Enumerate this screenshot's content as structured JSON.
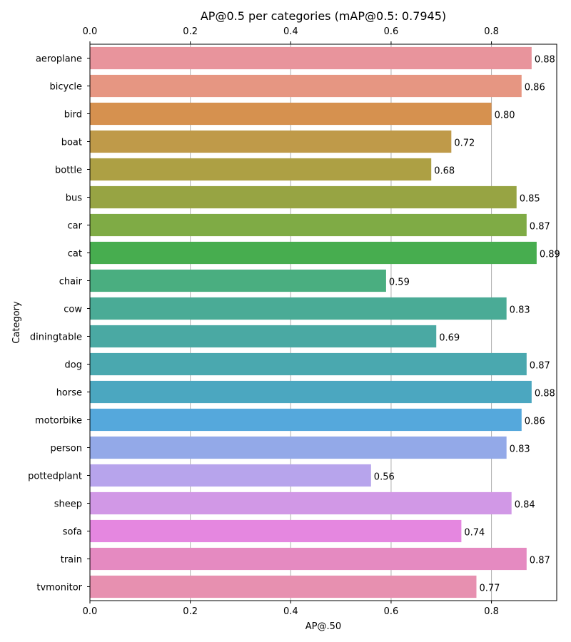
{
  "chart_data": {
    "type": "bar",
    "orientation": "horizontal",
    "title": "AP@0.5 per categories (mAP@0.5: 0.7945)",
    "xlabel": "AP@.50",
    "ylabel": "Category",
    "xlim": [
      0,
      0.93
    ],
    "xticks": [
      0,
      0.2,
      0.4,
      0.6,
      0.8
    ],
    "xtick_labels": [
      "0.0",
      "0.2",
      "0.4",
      "0.6",
      "0.8"
    ],
    "grid": "vertical",
    "categories": [
      "aeroplane",
      "bicycle",
      "bird",
      "boat",
      "bottle",
      "bus",
      "car",
      "cat",
      "chair",
      "cow",
      "diningtable",
      "dog",
      "horse",
      "motorbike",
      "person",
      "pottedplant",
      "sheep",
      "sofa",
      "train",
      "tvmonitor"
    ],
    "values": [
      0.88,
      0.86,
      0.8,
      0.72,
      0.68,
      0.85,
      0.87,
      0.89,
      0.59,
      0.83,
      0.69,
      0.87,
      0.88,
      0.86,
      0.83,
      0.56,
      0.84,
      0.74,
      0.87,
      0.77
    ],
    "value_labels": [
      "0.88",
      "0.86",
      "0.80",
      "0.72",
      "0.68",
      "0.85",
      "0.87",
      "0.89",
      "0.59",
      "0.83",
      "0.69",
      "0.87",
      "0.88",
      "0.86",
      "0.83",
      "0.56",
      "0.84",
      "0.74",
      "0.87",
      "0.77"
    ],
    "colors": [
      "#e8949c",
      "#e69682",
      "#d6914f",
      "#bf9a49",
      "#ada044",
      "#97a443",
      "#7fab45",
      "#47ad4f",
      "#4aae80",
      "#4aab96",
      "#4aa9a3",
      "#4aa8af",
      "#4ba7c0",
      "#55a8dc",
      "#93a9e8",
      "#b7a4ec",
      "#d198e6",
      "#e587e0",
      "#e58ac1",
      "#e790b0"
    ]
  }
}
